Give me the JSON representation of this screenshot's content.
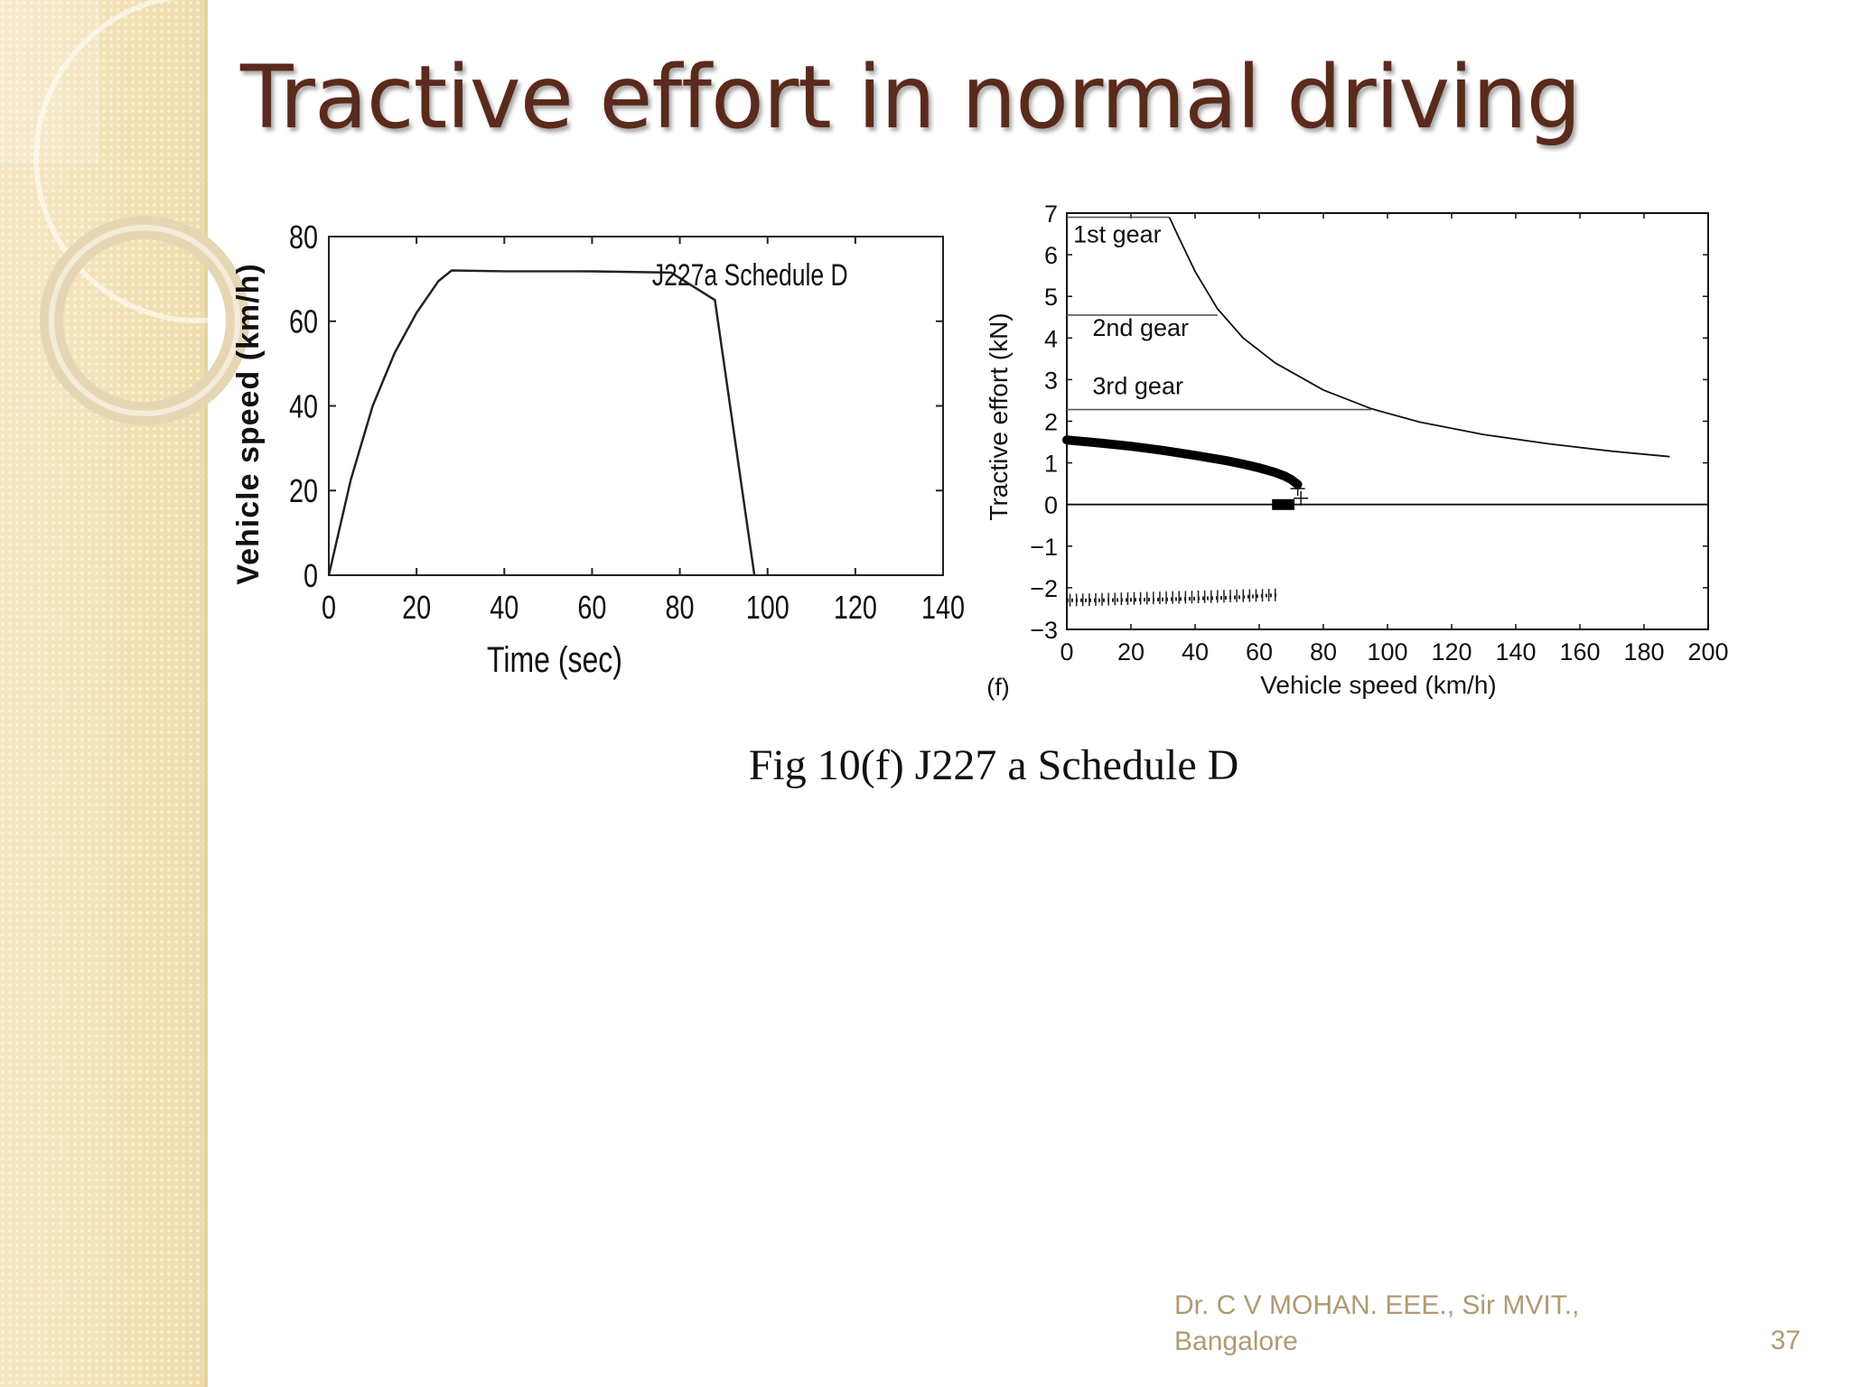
{
  "slide": {
    "title": "Tractive effort in normal driving",
    "caption": "Fig 10(f) J227 a Schedule D",
    "footer_line1": "Dr.  C V MOHAN.  EEE., Sir MVIT.,",
    "footer_line2": "Bangalore",
    "page_number": "37"
  },
  "colors": {
    "title": "#5a2a1c",
    "footer": "#b09a72",
    "sidebar": "#f3e3b8"
  },
  "chart_data": [
    {
      "type": "line",
      "title": "",
      "annotation": "J227a Schedule D",
      "xlabel": "Time (sec)",
      "ylabel": "Vehicle speed (km/h)",
      "xlim": [
        0,
        140
      ],
      "ylim": [
        0,
        80
      ],
      "xticks": [
        0,
        20,
        40,
        60,
        80,
        100,
        120,
        140
      ],
      "yticks": [
        0,
        20,
        40,
        60,
        80
      ],
      "grid": false,
      "series": [
        {
          "x": [
            0,
            5,
            10,
            15,
            20,
            25,
            28,
            40,
            60,
            78,
            88,
            97
          ],
          "y": [
            0,
            22.5,
            40,
            52.5,
            62,
            69.5,
            72,
            71.8,
            71.8,
            71.5,
            65,
            0
          ]
        }
      ]
    },
    {
      "type": "line",
      "title": "",
      "panel_label": "(f)",
      "xlabel": "Vehicle speed (km/h)",
      "ylabel": "Tractive effort (kN)",
      "xlim": [
        0,
        200
      ],
      "ylim": [
        -3,
        7
      ],
      "xticks": [
        0,
        20,
        40,
        60,
        80,
        100,
        120,
        140,
        160,
        180,
        200
      ],
      "yticks": [
        -3,
        -2,
        -1,
        0,
        1,
        2,
        3,
        4,
        5,
        6,
        7
      ],
      "grid": false,
      "annotations": [
        {
          "text": "1st gear",
          "x": 2,
          "y": 6.3
        },
        {
          "text": "2nd gear",
          "x": 8,
          "y": 4.05
        },
        {
          "text": "3rd gear",
          "x": 8,
          "y": 2.65
        }
      ],
      "series": [
        {
          "x": [
            32,
            35,
            40,
            47,
            55,
            65,
            80,
            95,
            110,
            130,
            150,
            170,
            188
          ],
          "y": [
            6.9,
            6.4,
            5.6,
            4.7,
            4.0,
            3.4,
            2.75,
            2.3,
            1.98,
            1.68,
            1.46,
            1.28,
            1.15
          ]
        },
        {
          "x": [
            0,
            32
          ],
          "y": [
            6.9,
            6.9
          ]
        },
        {
          "x": [
            0,
            47
          ],
          "y": [
            4.55,
            4.55
          ]
        },
        {
          "x": [
            0,
            95
          ],
          "y": [
            2.28,
            2.28
          ]
        },
        {
          "x": [
            0,
            200
          ],
          "y": [
            0,
            0
          ]
        },
        {
          "x": [
            0,
            10,
            20,
            30,
            40,
            50,
            55,
            60,
            65,
            68,
            70,
            72
          ],
          "y": [
            1.55,
            1.48,
            1.4,
            1.3,
            1.18,
            1.05,
            0.97,
            0.88,
            0.77,
            0.68,
            0.6,
            0.48
          ]
        },
        {
          "x": [
            64,
            71
          ],
          "y": [
            0,
            0
          ]
        },
        {
          "x": [
            0,
            10,
            20,
            30,
            40,
            50,
            60,
            66
          ],
          "y": [
            -2.3,
            -2.3,
            -2.29,
            -2.28,
            -2.26,
            -2.24,
            -2.2,
            -2.17
          ]
        }
      ]
    }
  ]
}
